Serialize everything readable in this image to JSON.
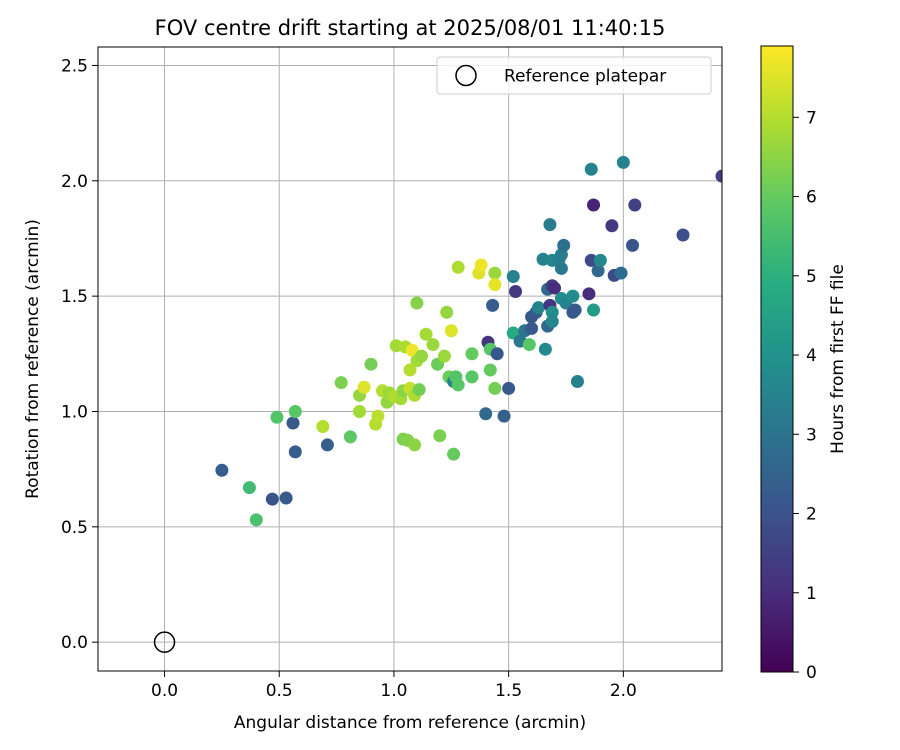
{
  "chart_data": {
    "type": "scatter",
    "title": "FOV centre drift starting at 2025/08/01 11:40:15",
    "xlabel": "Angular distance from reference (arcmin)",
    "ylabel": "Rotation from reference (arcmin)",
    "xlim": [
      -0.29,
      2.43
    ],
    "ylim": [
      -0.125,
      2.58
    ],
    "x_ticks": [
      0.0,
      0.5,
      1.0,
      1.5,
      2.0
    ],
    "x_tick_labels": [
      "0.0",
      "0.5",
      "1.0",
      "1.5",
      "2.0"
    ],
    "y_ticks": [
      0.0,
      0.5,
      1.0,
      1.5,
      2.0,
      2.5
    ],
    "y_tick_labels": [
      "0.0",
      "0.5",
      "1.0",
      "1.5",
      "2.0",
      "2.5"
    ],
    "grid": true,
    "legend": {
      "placement": "top-right",
      "entries": [
        "Reference platepar"
      ]
    },
    "reference_point": {
      "label": "Reference platepar",
      "x": 0.0,
      "y": 0.0
    },
    "colorbar": {
      "label": "Hours from first FF file",
      "colormap": "viridis",
      "range": [
        0,
        7.9
      ],
      "ticks": [
        0,
        1,
        2,
        3,
        4,
        5,
        6,
        7
      ],
      "tick_labels": [
        "0",
        "1",
        "2",
        "3",
        "4",
        "5",
        "6",
        "7"
      ]
    },
    "point_columns": [
      "x",
      "y",
      "hours"
    ],
    "points": [
      [
        0.25,
        0.745,
        2.3
      ],
      [
        0.37,
        0.67,
        5.4
      ],
      [
        0.4,
        0.53,
        5.6
      ],
      [
        0.47,
        0.62,
        2.1
      ],
      [
        0.53,
        0.625,
        2.2
      ],
      [
        0.49,
        0.975,
        5.7
      ],
      [
        0.56,
        0.95,
        2.2
      ],
      [
        0.57,
        0.825,
        2.3
      ],
      [
        0.57,
        1.0,
        5.8
      ],
      [
        0.69,
        0.935,
        7.0
      ],
      [
        0.71,
        0.855,
        2.4
      ],
      [
        0.77,
        1.125,
        6.3
      ],
      [
        0.81,
        0.89,
        5.9
      ],
      [
        0.85,
        1.07,
        6.6
      ],
      [
        0.87,
        1.105,
        7.5
      ],
      [
        0.85,
        1.0,
        6.8
      ],
      [
        0.9,
        1.205,
        6.2
      ],
      [
        0.92,
        0.945,
        7.0
      ],
      [
        0.93,
        0.98,
        7.1
      ],
      [
        0.95,
        1.09,
        7.0
      ],
      [
        0.97,
        1.04,
        6.6
      ],
      [
        0.98,
        1.08,
        6.7
      ],
      [
        1.0,
        1.065,
        6.9
      ],
      [
        1.01,
        1.285,
        6.8
      ],
      [
        1.03,
        1.055,
        6.8
      ],
      [
        1.04,
        1.09,
        6.5
      ],
      [
        1.04,
        0.88,
        6.3
      ],
      [
        1.05,
        1.28,
        6.9
      ],
      [
        1.06,
        0.875,
        6.4
      ],
      [
        1.07,
        1.18,
        7.0
      ],
      [
        1.07,
        1.1,
        7.2
      ],
      [
        1.08,
        1.265,
        7.7
      ],
      [
        1.09,
        1.07,
        6.9
      ],
      [
        1.09,
        0.855,
        6.5
      ],
      [
        1.1,
        1.22,
        6.8
      ],
      [
        1.1,
        1.47,
        6.4
      ],
      [
        1.11,
        1.095,
        6.2
      ],
      [
        1.12,
        1.24,
        6.6
      ],
      [
        1.14,
        1.335,
        6.8
      ],
      [
        1.17,
        1.29,
        6.7
      ],
      [
        1.19,
        1.205,
        6.1
      ],
      [
        1.2,
        0.895,
        6.3
      ],
      [
        1.22,
        1.24,
        6.7
      ],
      [
        1.23,
        1.43,
        6.6
      ],
      [
        1.24,
        1.15,
        6.1
      ],
      [
        1.25,
        1.35,
        7.5
      ],
      [
        1.26,
        0.815,
        6.0
      ],
      [
        1.26,
        1.13,
        3.5
      ],
      [
        1.27,
        1.15,
        5.7
      ],
      [
        1.28,
        1.625,
        6.9
      ],
      [
        1.28,
        1.115,
        5.8
      ],
      [
        1.34,
        1.25,
        6.0
      ],
      [
        1.34,
        1.15,
        5.8
      ],
      [
        1.37,
        1.6,
        7.5
      ],
      [
        1.38,
        1.635,
        7.7
      ],
      [
        1.4,
        0.99,
        2.7
      ],
      [
        1.41,
        1.3,
        1.2
      ],
      [
        1.42,
        1.27,
        5.8
      ],
      [
        1.42,
        1.18,
        6.0
      ],
      [
        1.43,
        1.46,
        2.3
      ],
      [
        1.44,
        1.1,
        6.2
      ],
      [
        1.44,
        1.6,
        6.7
      ],
      [
        1.44,
        1.55,
        7.6
      ],
      [
        1.45,
        1.25,
        2.1
      ],
      [
        1.48,
        0.98,
        2.4
      ],
      [
        1.5,
        1.1,
        2.2
      ],
      [
        1.52,
        1.34,
        4.8
      ],
      [
        1.52,
        1.585,
        3.5
      ],
      [
        1.53,
        1.52,
        1.3
      ],
      [
        1.55,
        1.305,
        3.1
      ],
      [
        1.57,
        1.35,
        3.0
      ],
      [
        1.59,
        1.29,
        5.8
      ],
      [
        1.6,
        1.41,
        2.1
      ],
      [
        1.6,
        1.36,
        2.2
      ],
      [
        1.62,
        1.43,
        2.2
      ],
      [
        1.63,
        1.45,
        3.5
      ],
      [
        1.65,
        1.66,
        3.5
      ],
      [
        1.66,
        1.27,
        3.7
      ],
      [
        1.67,
        1.53,
        2.7
      ],
      [
        1.67,
        1.37,
        2.7
      ],
      [
        1.68,
        1.81,
        3.3
      ],
      [
        1.68,
        1.46,
        1.2
      ],
      [
        1.69,
        1.545,
        1.4
      ],
      [
        1.69,
        1.655,
        3.6
      ],
      [
        1.69,
        1.43,
        3.9
      ],
      [
        1.69,
        1.39,
        3.6
      ],
      [
        1.7,
        1.535,
        1.0
      ],
      [
        1.72,
        1.66,
        3.4
      ],
      [
        1.73,
        1.62,
        3.2
      ],
      [
        1.73,
        1.68,
        3.3
      ],
      [
        1.73,
        1.49,
        3.8
      ],
      [
        1.74,
        1.72,
        2.9
      ],
      [
        1.75,
        1.47,
        3.5
      ],
      [
        1.78,
        1.43,
        2.2
      ],
      [
        1.78,
        1.5,
        3.8
      ],
      [
        1.79,
        1.44,
        2.2
      ],
      [
        1.8,
        1.13,
        3.4
      ],
      [
        1.85,
        1.51,
        1.0
      ],
      [
        1.86,
        1.655,
        1.8
      ],
      [
        1.86,
        2.05,
        3.5
      ],
      [
        1.87,
        1.895,
        0.8
      ],
      [
        1.87,
        1.44,
        4.3
      ],
      [
        1.89,
        1.61,
        2.7
      ],
      [
        1.9,
        1.655,
        3.7
      ],
      [
        1.95,
        1.805,
        1.3
      ],
      [
        1.96,
        1.59,
        1.8
      ],
      [
        1.99,
        1.6,
        2.8
      ],
      [
        2.0,
        2.08,
        3.5
      ],
      [
        2.04,
        1.72,
        2.1
      ],
      [
        2.05,
        1.895,
        1.5
      ],
      [
        2.26,
        1.765,
        1.9
      ],
      [
        2.43,
        2.02,
        1.5
      ]
    ]
  }
}
